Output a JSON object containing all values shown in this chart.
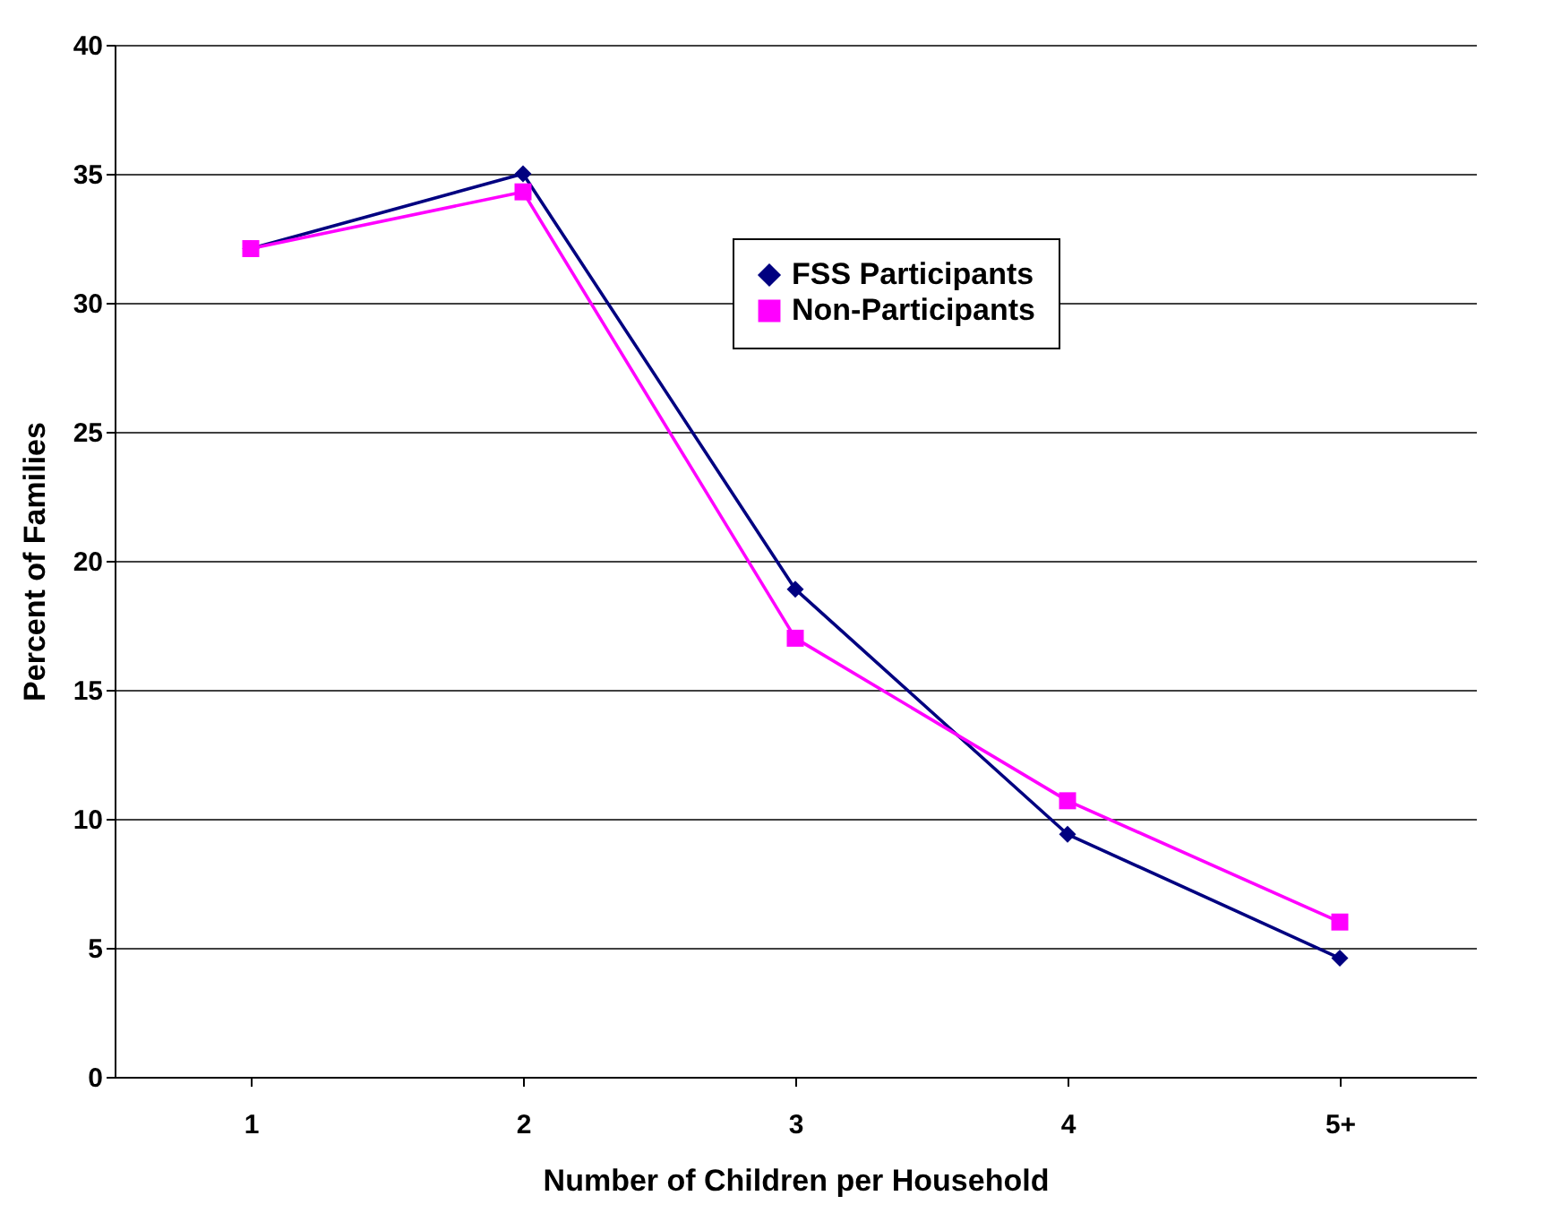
{
  "chart_data": {
    "type": "line",
    "xlabel": "Number of Children per Household",
    "ylabel": "Percent of Families",
    "categories": [
      "1",
      "2",
      "3",
      "4",
      "5+"
    ],
    "series": [
      {
        "name": "FSS Participants",
        "color": "#000080",
        "marker": "diamond",
        "values": [
          32.1,
          35.0,
          18.9,
          9.4,
          4.6
        ]
      },
      {
        "name": "Non-Participants",
        "color": "#ff00ff",
        "marker": "square",
        "values": [
          32.1,
          34.3,
          17.0,
          10.7,
          6.0
        ]
      }
    ],
    "ylim": [
      0,
      40
    ],
    "yticks": [
      0,
      5,
      10,
      15,
      20,
      25,
      30,
      35,
      40
    ],
    "grid": "y",
    "legend": "top right",
    "line_style": "solid"
  }
}
